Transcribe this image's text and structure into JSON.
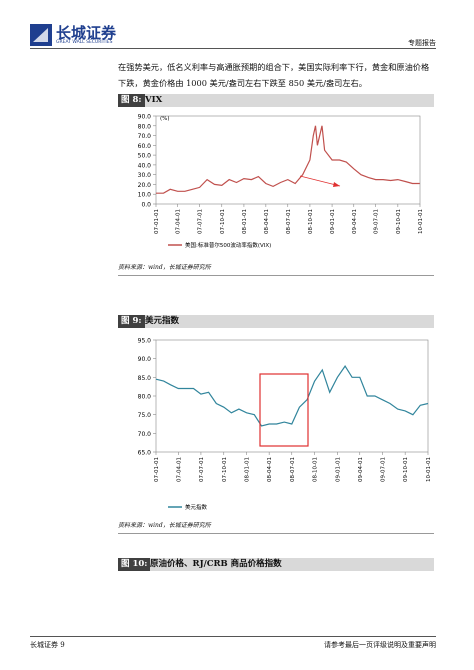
{
  "header": {
    "logo_cn": "长城证券",
    "logo_en": "GREAT WALL SECURITIES",
    "report_type": "专题报告"
  },
  "body": [
    "在强势美元，低名义利率与高通胀预期的组合下，美国实际利率下行，黄金和原油价格",
    "下跌，黄金价格由 1000 美元/盎司左右下跌至 850 美元/盎司左右。"
  ],
  "figures": [
    {
      "label": "图 8:",
      "title": "VIX",
      "source": "资料来源：wind，长城证券研究所"
    },
    {
      "label": "图 9:",
      "title": "美元指数",
      "source": "资料来源：wind，长城证券研究所"
    },
    {
      "label": "图 10:",
      "title": "原油价格、RJ/CRB 商品价格指数"
    }
  ],
  "footer": {
    "left": "长城证券 9",
    "right": "请参考最后一页评级说明及重要声明"
  },
  "chart_data": [
    {
      "type": "line",
      "y_label": "(%)",
      "x": [
        "07-01-01",
        "07-02-01",
        "07-03-01",
        "07-04-01",
        "07-05-01",
        "07-06-01",
        "07-07-01",
        "07-08-01",
        "07-09-01",
        "07-10-01",
        "07-11-01",
        "07-12-01",
        "08-01-01",
        "08-02-01",
        "08-03-01",
        "08-04-01",
        "08-05-01",
        "08-06-01",
        "08-07-01",
        "08-08-01",
        "08-09-01",
        "08-10-01",
        "08-10-15",
        "08-10-24",
        "08-11-01",
        "08-11-20",
        "08-12-01",
        "09-01-01",
        "09-02-01",
        "09-03-01",
        "09-04-01",
        "09-05-01",
        "09-06-01",
        "09-07-01",
        "09-08-01",
        "09-09-01",
        "09-10-01",
        "09-11-01",
        "09-12-01",
        "09-12-31"
      ],
      "series": [
        {
          "name": "美国:标准普尔500波动率指数(VIX)",
          "color": "#c0504d",
          "values": [
            11,
            11,
            15,
            13,
            13,
            15,
            17,
            25,
            20,
            19,
            25,
            22,
            26,
            25,
            28,
            21,
            18,
            22,
            25,
            21,
            30,
            45,
            70,
            80,
            60,
            80,
            55,
            45,
            45,
            43,
            36,
            30,
            27,
            25,
            25,
            24,
            25,
            23,
            21,
            21
          ]
        }
      ],
      "xlim": [
        "07-01-01",
        "10-01-01"
      ],
      "xticks": [
        "07-01-01",
        "07-04-01",
        "07-07-01",
        "07-10-01",
        "08-01-01",
        "08-04-01",
        "08-07-01",
        "08-10-01",
        "09-01-01",
        "09-04-01",
        "09-07-01",
        "09-10-01",
        "10-01-01"
      ],
      "ylim": [
        0,
        90
      ],
      "yticks": [
        {
          "value": 0,
          "label": "0.0"
        },
        {
          "value": 10,
          "label": "10.0"
        },
        {
          "value": 20,
          "label": "20.0"
        },
        {
          "value": 30,
          "label": "30.0"
        },
        {
          "value": 40,
          "label": "40.0"
        },
        {
          "value": 50,
          "label": "50.0"
        },
        {
          "value": 60,
          "label": "60.0"
        },
        {
          "value": 70,
          "label": "70.0"
        },
        {
          "value": 80,
          "label": "80.0"
        },
        {
          "value": 90,
          "label": "90.0"
        }
      ]
    },
    {
      "type": "line",
      "x": [
        "07-01-01",
        "07-02-01",
        "07-03-01",
        "07-04-01",
        "07-05-01",
        "07-06-01",
        "07-07-01",
        "07-08-01",
        "07-09-01",
        "07-10-01",
        "07-11-01",
        "07-12-01",
        "08-01-01",
        "08-02-01",
        "08-03-01",
        "08-04-01",
        "08-05-01",
        "08-06-01",
        "08-07-01",
        "08-08-01",
        "08-09-01",
        "08-10-01",
        "08-11-01",
        "08-12-01",
        "09-01-01",
        "09-02-01",
        "09-03-01",
        "09-04-01",
        "09-05-01",
        "09-06-01",
        "09-07-01",
        "09-08-01",
        "09-09-01",
        "09-10-01",
        "09-11-01",
        "09-12-01",
        "10-01-01"
      ],
      "series": [
        {
          "name": "美元指数",
          "color": "#31859c",
          "values": [
            84.5,
            84,
            83,
            82,
            82,
            82,
            80.5,
            81,
            78,
            77,
            75.5,
            76.5,
            75.5,
            75,
            72,
            72.5,
            72.5,
            73,
            72.5,
            77,
            79,
            84,
            87,
            81,
            85,
            88,
            85,
            85,
            80,
            80,
            79,
            78,
            76.5,
            76,
            75,
            77.5,
            78
          ]
        }
      ],
      "xlim": [
        "07-01-01",
        "10-01-01"
      ],
      "xticks": [
        "07-01-01",
        "07-04-01",
        "07-07-01",
        "07-10-01",
        "08-01-01",
        "08-04-01",
        "08-07-01",
        "08-10-01",
        "09-01-01",
        "09-04-01",
        "09-07-01",
        "09-10-01",
        "10-01-01"
      ],
      "ylim": [
        65,
        95
      ],
      "yticks": [
        {
          "value": 65,
          "label": "65.0"
        },
        {
          "value": 70,
          "label": "70.0"
        },
        {
          "value": 75,
          "label": "75.0"
        },
        {
          "value": 80,
          "label": "80.0"
        },
        {
          "value": 85,
          "label": "85.0"
        },
        {
          "value": 90,
          "label": "90.0"
        },
        {
          "value": 95,
          "label": "95.0"
        }
      ]
    }
  ]
}
